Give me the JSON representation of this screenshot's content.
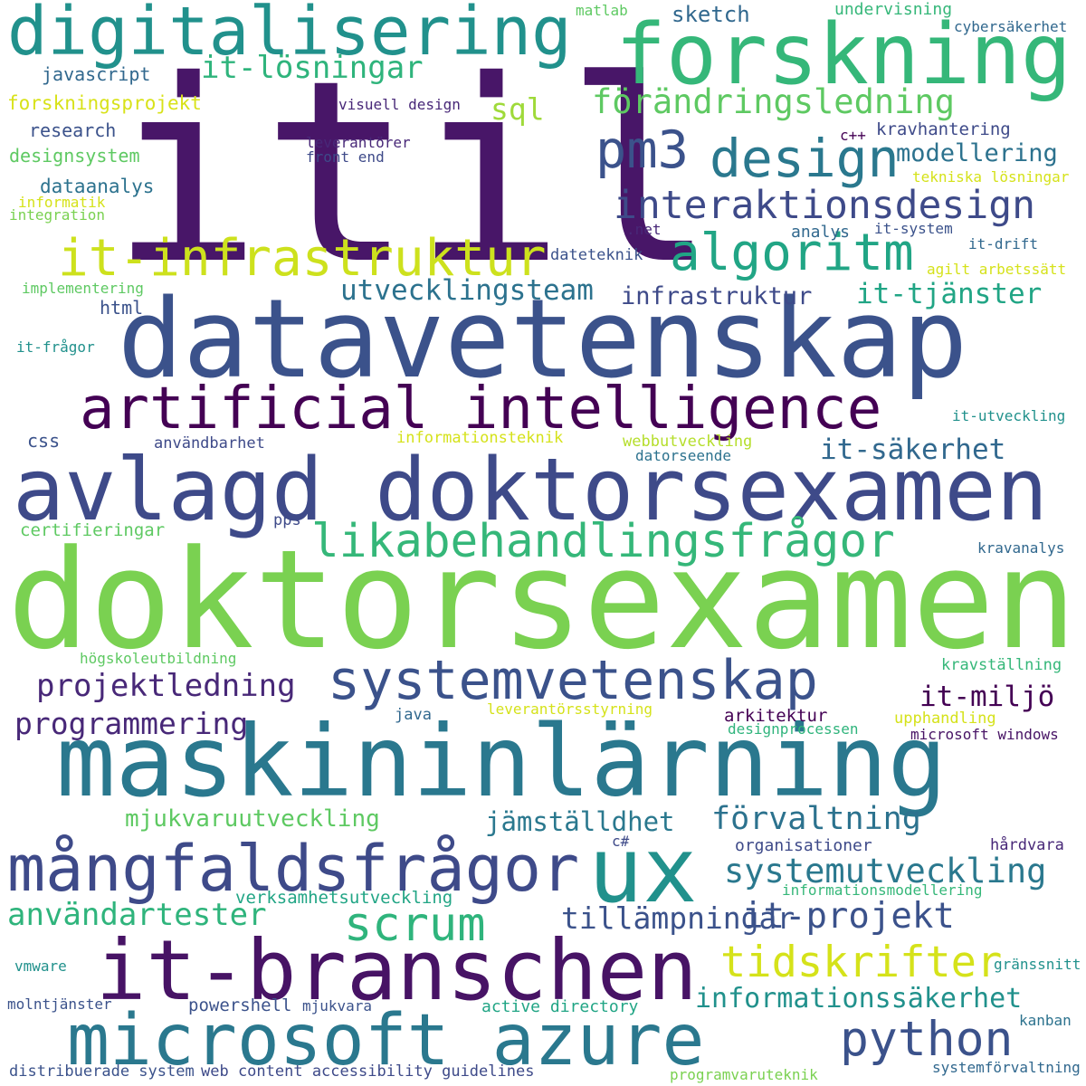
{
  "words": [
    {
      "text": "itil",
      "color": "#481668"
    },
    {
      "text": "doktorsexamen",
      "color": "#7ad151"
    },
    {
      "text": "datavetenskap",
      "color": "#3b528b"
    },
    {
      "text": "maskininlärning",
      "color": "#2a788e"
    },
    {
      "text": "avlagd doktorsexamen",
      "color": "#3e4a89"
    },
    {
      "text": "forskning",
      "color": "#35b779"
    },
    {
      "text": "digitalisering",
      "color": "#21918c"
    },
    {
      "text": "ux",
      "color": "#21918c"
    },
    {
      "text": "it-branschen",
      "color": "#471365"
    },
    {
      "text": "microsoft azure",
      "color": "#2a788e"
    },
    {
      "text": "mångfaldsfrågor",
      "color": "#3e4a89"
    },
    {
      "text": "artificial intelligence",
      "color": "#440154"
    },
    {
      "text": "systemvetenskap",
      "color": "#3b528b"
    },
    {
      "text": "likabehandlingsfrågor",
      "color": "#35b779"
    },
    {
      "text": "it-infrastruktur",
      "color": "#cde11d"
    },
    {
      "text": "design",
      "color": "#2a788e"
    },
    {
      "text": "pm3",
      "color": "#3b528b"
    },
    {
      "text": "algoritm",
      "color": "#21a585"
    },
    {
      "text": "interaktionsdesign",
      "color": "#3e4a89"
    },
    {
      "text": "scrum",
      "color": "#2fb47c"
    },
    {
      "text": "tidskrifter",
      "color": "#d5e21a"
    },
    {
      "text": "python",
      "color": "#3b528b"
    },
    {
      "text": "systemutveckling",
      "color": "#2a788e"
    },
    {
      "text": "förändringsledning",
      "color": "#5ec962"
    },
    {
      "text": "it-lösningar",
      "color": "#2fb47c"
    },
    {
      "text": "utvecklingsteam",
      "color": "#2c728e"
    },
    {
      "text": "it-tjänster",
      "color": "#21a585"
    },
    {
      "text": "it-säkerhet",
      "color": "#31688e"
    },
    {
      "text": "infrastruktur",
      "color": "#3e4a89"
    },
    {
      "text": "projektledning",
      "color": "#482878"
    },
    {
      "text": "programmering",
      "color": "#482878"
    },
    {
      "text": "it-miljö",
      "color": "#440154"
    },
    {
      "text": "jämställdhet",
      "color": "#2a788e"
    },
    {
      "text": "förvaltning",
      "color": "#2c728e"
    },
    {
      "text": "användartester",
      "color": "#2fb47c"
    },
    {
      "text": "it-projekt",
      "color": "#3b528b"
    },
    {
      "text": "tillämpningar",
      "color": "#3b528b"
    },
    {
      "text": "informationssäkerhet",
      "color": "#21918c"
    },
    {
      "text": "mjukvaruutveckling",
      "color": "#5ec962"
    },
    {
      "text": "sql",
      "color": "#9fda3a"
    },
    {
      "text": "sketch",
      "color": "#31688e"
    },
    {
      "text": "modellering",
      "color": "#2c728e"
    },
    {
      "text": "javascript",
      "color": "#31688e"
    },
    {
      "text": "forskningsprojekt",
      "color": "#d8e219"
    },
    {
      "text": "research",
      "color": "#3b528b"
    },
    {
      "text": "designsystem",
      "color": "#5ec962"
    },
    {
      "text": "dataanalys",
      "color": "#2c728e"
    },
    {
      "text": "informatik",
      "color": "#d5e21a"
    },
    {
      "text": "integration",
      "color": "#7ad151"
    },
    {
      "text": "implementering",
      "color": "#5ec962"
    },
    {
      "text": "html",
      "color": "#3b528b"
    },
    {
      "text": "it-frågor",
      "color": "#21918c"
    },
    {
      "text": "css",
      "color": "#3b528b"
    },
    {
      "text": "användbarhet",
      "color": "#3e4a89"
    },
    {
      "text": "certifieringar",
      "color": "#5ec962"
    },
    {
      "text": "pps",
      "color": "#3e4a89"
    },
    {
      "text": "informationsteknik",
      "color": "#d5e21a"
    },
    {
      "text": "webbutveckling",
      "color": "#b5de2b"
    },
    {
      "text": "datorseende",
      "color": "#2c728e"
    },
    {
      "text": "dateteknik",
      "color": "#3b528b"
    },
    {
      "text": ".net",
      "color": "#482878"
    },
    {
      "text": "analys",
      "color": "#31688e"
    },
    {
      "text": "it-system",
      "color": "#3b528b"
    },
    {
      "text": "it-drift",
      "color": "#31688e"
    },
    {
      "text": "agilt arbetssätt",
      "color": "#d5e21a"
    },
    {
      "text": "tekniska lösningar",
      "color": "#d5e21a"
    },
    {
      "text": "matlab",
      "color": "#5ec962"
    },
    {
      "text": "undervisning",
      "color": "#35b779"
    },
    {
      "text": "cybersäkerhet",
      "color": "#31688e"
    },
    {
      "text": "visuell design",
      "color": "#482878"
    },
    {
      "text": "leverantörer",
      "color": "#482878"
    },
    {
      "text": "front end",
      "color": "#3e4a89"
    },
    {
      "text": "c++",
      "color": "#440154"
    },
    {
      "text": "kravhantering",
      "color": "#3e4a89"
    },
    {
      "text": "kravanalys",
      "color": "#31688e"
    },
    {
      "text": "högskoleutbildning",
      "color": "#5ec962"
    },
    {
      "text": "kravställning",
      "color": "#35b779"
    },
    {
      "text": "java",
      "color": "#31688e"
    },
    {
      "text": "leverantörsstyrning",
      "color": "#d5e21a"
    },
    {
      "text": "arkitektur",
      "color": "#440154"
    },
    {
      "text": "designprocessen",
      "color": "#2fb47c"
    },
    {
      "text": "upphandling",
      "color": "#d5e21a"
    },
    {
      "text": "microsoft windows",
      "color": "#471365"
    },
    {
      "text": "it-utveckling",
      "color": "#21918c"
    },
    {
      "text": "organisationer",
      "color": "#3e4a89"
    },
    {
      "text": "c#",
      "color": "#3e4a89"
    },
    {
      "text": "hårdvara",
      "color": "#482878"
    },
    {
      "text": "verksamhetsutveckling",
      "color": "#21a585"
    },
    {
      "text": "informationsmodellering",
      "color": "#35b779"
    },
    {
      "text": "gränssnitt",
      "color": "#21918c"
    },
    {
      "text": "vmware",
      "color": "#21918c"
    },
    {
      "text": "powershell",
      "color": "#3b528b"
    },
    {
      "text": "molntjänster",
      "color": "#3b528b"
    },
    {
      "text": "mjukvara",
      "color": "#3b528b"
    },
    {
      "text": "active directory",
      "color": "#21a585"
    },
    {
      "text": "kanban",
      "color": "#2c728e"
    },
    {
      "text": "distribuerade system",
      "color": "#3b528b"
    },
    {
      "text": "web content accessibility guidelines",
      "color": "#3e4a89"
    },
    {
      "text": "programvaruteknik",
      "color": "#7ad151"
    },
    {
      "text": "systemförvaltning",
      "color": "#31688e"
    }
  ]
}
